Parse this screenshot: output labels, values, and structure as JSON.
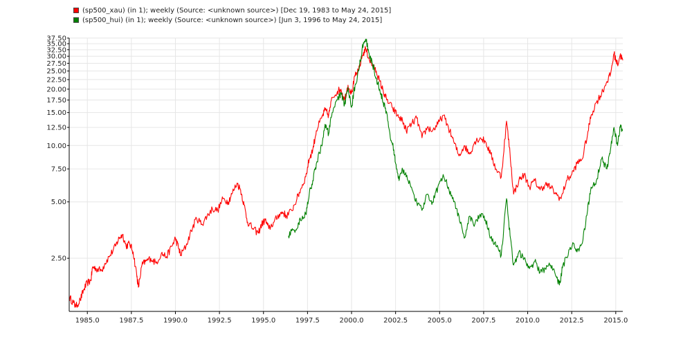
{
  "legend": [
    {
      "label": "(sp500_xau) (in 1); weekly (Source: <unknown source>) [Dec 19, 1983 to May 24, 2015]",
      "color": "#ff0000"
    },
    {
      "label": "(sp500_hui) (in 1); weekly (Source: <unknown source>) [Jun 3, 1996 to May 24, 2015]",
      "color": "#008000"
    }
  ],
  "chart_data": {
    "type": "line",
    "y_scale": "log",
    "xlim": [
      1983.97,
      2015.4
    ],
    "ylim": [
      1.3,
      37.5
    ],
    "grid": true,
    "x_ticks": [
      {
        "value": 1985.0,
        "label": "1985.0"
      },
      {
        "value": 1987.5,
        "label": "1987.5"
      },
      {
        "value": 1990.0,
        "label": "1990.0"
      },
      {
        "value": 1992.5,
        "label": "1992.5"
      },
      {
        "value": 1995.0,
        "label": "1995.0"
      },
      {
        "value": 1997.5,
        "label": "1997.5"
      },
      {
        "value": 2000.0,
        "label": "2000.0"
      },
      {
        "value": 2002.5,
        "label": "2002.5"
      },
      {
        "value": 2005.0,
        "label": "2005.0"
      },
      {
        "value": 2007.5,
        "label": "2007.5"
      },
      {
        "value": 2010.0,
        "label": "2010.0"
      },
      {
        "value": 2012.5,
        "label": "2012.5"
      },
      {
        "value": 2015.0,
        "label": "2015.0"
      }
    ],
    "y_ticks": [
      {
        "value": 2.5,
        "label": "2.50"
      },
      {
        "value": 5.0,
        "label": "5.00"
      },
      {
        "value": 7.5,
        "label": "7.50"
      },
      {
        "value": 10.0,
        "label": "10.00"
      },
      {
        "value": 12.5,
        "label": "12.50"
      },
      {
        "value": 15.0,
        "label": "15.00"
      },
      {
        "value": 17.5,
        "label": "17.50"
      },
      {
        "value": 20.0,
        "label": "20.00"
      },
      {
        "value": 22.5,
        "label": "22.50"
      },
      {
        "value": 25.0,
        "label": "25.00"
      },
      {
        "value": 27.5,
        "label": "27.50"
      },
      {
        "value": 30.0,
        "label": "30.00"
      },
      {
        "value": 32.5,
        "label": "32.50"
      },
      {
        "value": 35.0,
        "label": "35.00"
      },
      {
        "value": 37.5,
        "label": "37.50"
      }
    ],
    "series": [
      {
        "color": "#ff0000",
        "points": [
          [
            1983.97,
            1.55
          ],
          [
            1984.2,
            1.45
          ],
          [
            1984.35,
            1.38
          ],
          [
            1984.6,
            1.5
          ],
          [
            1984.8,
            1.7
          ],
          [
            1985.0,
            1.85
          ],
          [
            1985.2,
            1.9
          ],
          [
            1985.3,
            2.25
          ],
          [
            1985.5,
            2.2
          ],
          [
            1985.8,
            2.15
          ],
          [
            1986.0,
            2.35
          ],
          [
            1986.3,
            2.6
          ],
          [
            1986.6,
            2.9
          ],
          [
            1986.8,
            3.2
          ],
          [
            1987.0,
            3.35
          ],
          [
            1987.2,
            2.9
          ],
          [
            1987.4,
            3.0
          ],
          [
            1987.6,
            2.7
          ],
          [
            1987.8,
            2.05
          ],
          [
            1987.9,
            1.75
          ],
          [
            1988.1,
            2.3
          ],
          [
            1988.3,
            2.4
          ],
          [
            1988.6,
            2.5
          ],
          [
            1988.9,
            2.35
          ],
          [
            1989.2,
            2.65
          ],
          [
            1989.5,
            2.55
          ],
          [
            1989.8,
            2.9
          ],
          [
            1990.0,
            3.2
          ],
          [
            1990.2,
            2.8
          ],
          [
            1990.3,
            2.6
          ],
          [
            1990.6,
            2.9
          ],
          [
            1990.9,
            3.5
          ],
          [
            1991.2,
            4.1
          ],
          [
            1991.5,
            3.8
          ],
          [
            1991.8,
            4.2
          ],
          [
            1992.1,
            4.6
          ],
          [
            1992.4,
            4.5
          ],
          [
            1992.7,
            5.2
          ],
          [
            1993.0,
            5.0
          ],
          [
            1993.2,
            5.5
          ],
          [
            1993.5,
            6.3
          ],
          [
            1993.7,
            5.8
          ],
          [
            1993.9,
            4.8
          ],
          [
            1994.1,
            3.9
          ],
          [
            1994.4,
            3.6
          ],
          [
            1994.7,
            3.4
          ],
          [
            1994.9,
            3.8
          ],
          [
            1995.1,
            4.0
          ],
          [
            1995.3,
            3.6
          ],
          [
            1995.6,
            3.9
          ],
          [
            1995.9,
            4.3
          ],
          [
            1996.1,
            4.4
          ],
          [
            1996.3,
            4.2
          ],
          [
            1996.6,
            4.5
          ],
          [
            1996.9,
            5.2
          ],
          [
            1997.1,
            5.8
          ],
          [
            1997.4,
            6.8
          ],
          [
            1997.6,
            8.5
          ],
          [
            1997.8,
            9.5
          ],
          [
            1998.0,
            12.0
          ],
          [
            1998.3,
            14.0
          ],
          [
            1998.5,
            15.5
          ],
          [
            1998.7,
            14.5
          ],
          [
            1998.9,
            18.0
          ],
          [
            1999.2,
            19.5
          ],
          [
            1999.4,
            20.0
          ],
          [
            1999.6,
            17.5
          ],
          [
            1999.8,
            21.0
          ],
          [
            2000.0,
            19.0
          ],
          [
            2000.2,
            23.5
          ],
          [
            2000.4,
            25.0
          ],
          [
            2000.6,
            30.0
          ],
          [
            2000.8,
            33.0
          ],
          [
            2001.0,
            29.0
          ],
          [
            2001.2,
            26.5
          ],
          [
            2001.4,
            25.0
          ],
          [
            2001.6,
            22.0
          ],
          [
            2001.8,
            19.5
          ],
          [
            2002.0,
            17.5
          ],
          [
            2002.3,
            16.0
          ],
          [
            2002.6,
            14.5
          ],
          [
            2002.9,
            13.5
          ],
          [
            2003.1,
            12.0
          ],
          [
            2003.4,
            13.0
          ],
          [
            2003.7,
            14.0
          ],
          [
            2004.0,
            11.0
          ],
          [
            2004.3,
            12.5
          ],
          [
            2004.6,
            12.0
          ],
          [
            2004.9,
            13.0
          ],
          [
            2005.2,
            14.5
          ],
          [
            2005.5,
            12.5
          ],
          [
            2005.8,
            10.5
          ],
          [
            2006.1,
            8.8
          ],
          [
            2006.4,
            10.0
          ],
          [
            2006.7,
            9.0
          ],
          [
            2007.0,
            10.5
          ],
          [
            2007.3,
            11.0
          ],
          [
            2007.6,
            10.5
          ],
          [
            2007.9,
            9.0
          ],
          [
            2008.2,
            7.5
          ],
          [
            2008.5,
            6.8
          ],
          [
            2008.8,
            13.5
          ],
          [
            2009.0,
            9.0
          ],
          [
            2009.2,
            5.5
          ],
          [
            2009.5,
            6.5
          ],
          [
            2009.8,
            7.0
          ],
          [
            2010.1,
            6.0
          ],
          [
            2010.4,
            6.5
          ],
          [
            2010.7,
            5.8
          ],
          [
            2011.0,
            6.2
          ],
          [
            2011.3,
            6.0
          ],
          [
            2011.6,
            5.5
          ],
          [
            2011.9,
            5.2
          ],
          [
            2012.2,
            6.5
          ],
          [
            2012.5,
            7.0
          ],
          [
            2012.8,
            8.0
          ],
          [
            2013.1,
            8.5
          ],
          [
            2013.4,
            11.5
          ],
          [
            2013.6,
            14.5
          ],
          [
            2013.9,
            17.0
          ],
          [
            2014.2,
            19.0
          ],
          [
            2014.5,
            22.0
          ],
          [
            2014.7,
            24.0
          ],
          [
            2014.9,
            31.0
          ],
          [
            2015.1,
            27.0
          ],
          [
            2015.25,
            30.5
          ],
          [
            2015.4,
            28.5
          ]
        ]
      },
      {
        "color": "#008000",
        "points": [
          [
            1996.42,
            3.3
          ],
          [
            1996.6,
            3.5
          ],
          [
            1996.9,
            3.6
          ],
          [
            1997.1,
            4.0
          ],
          [
            1997.4,
            4.3
          ],
          [
            1997.6,
            5.5
          ],
          [
            1997.8,
            6.5
          ],
          [
            1998.0,
            8.0
          ],
          [
            1998.3,
            10.0
          ],
          [
            1998.5,
            13.0
          ],
          [
            1998.7,
            11.5
          ],
          [
            1998.9,
            15.0
          ],
          [
            1999.2,
            17.5
          ],
          [
            1999.4,
            19.0
          ],
          [
            1999.6,
            16.5
          ],
          [
            1999.8,
            20.5
          ],
          [
            2000.0,
            16.0
          ],
          [
            2000.2,
            21.0
          ],
          [
            2000.4,
            25.0
          ],
          [
            2000.6,
            33.0
          ],
          [
            2000.8,
            37.0
          ],
          [
            2001.0,
            31.0
          ],
          [
            2001.2,
            27.0
          ],
          [
            2001.4,
            23.0
          ],
          [
            2001.6,
            20.0
          ],
          [
            2001.8,
            17.0
          ],
          [
            2002.0,
            15.0
          ],
          [
            2002.2,
            11.0
          ],
          [
            2002.4,
            9.5
          ],
          [
            2002.5,
            8.0
          ],
          [
            2002.7,
            6.5
          ],
          [
            2002.9,
            7.5
          ],
          [
            2003.1,
            6.8
          ],
          [
            2003.4,
            6.0
          ],
          [
            2003.7,
            5.0
          ],
          [
            2004.0,
            4.5
          ],
          [
            2004.3,
            5.5
          ],
          [
            2004.6,
            5.0
          ],
          [
            2004.9,
            6.0
          ],
          [
            2005.2,
            7.0
          ],
          [
            2005.5,
            6.0
          ],
          [
            2005.8,
            5.0
          ],
          [
            2006.1,
            4.2
          ],
          [
            2006.4,
            3.2
          ],
          [
            2006.7,
            4.2
          ],
          [
            2007.0,
            3.8
          ],
          [
            2007.3,
            4.3
          ],
          [
            2007.6,
            4.0
          ],
          [
            2007.9,
            3.2
          ],
          [
            2008.2,
            2.9
          ],
          [
            2008.5,
            2.6
          ],
          [
            2008.8,
            5.2
          ],
          [
            2009.0,
            3.3
          ],
          [
            2009.2,
            2.3
          ],
          [
            2009.5,
            2.7
          ],
          [
            2009.8,
            2.5
          ],
          [
            2010.1,
            2.2
          ],
          [
            2010.4,
            2.4
          ],
          [
            2010.7,
            2.1
          ],
          [
            2011.0,
            2.2
          ],
          [
            2011.3,
            2.3
          ],
          [
            2011.6,
            2.0
          ],
          [
            2011.8,
            1.8
          ],
          [
            2012.0,
            2.3
          ],
          [
            2012.3,
            2.6
          ],
          [
            2012.6,
            3.0
          ],
          [
            2012.8,
            2.7
          ],
          [
            2013.1,
            3.0
          ],
          [
            2013.4,
            4.5
          ],
          [
            2013.6,
            6.0
          ],
          [
            2013.9,
            6.5
          ],
          [
            2014.2,
            8.5
          ],
          [
            2014.5,
            7.5
          ],
          [
            2014.7,
            9.5
          ],
          [
            2014.9,
            12.5
          ],
          [
            2015.1,
            10.0
          ],
          [
            2015.25,
            12.5
          ],
          [
            2015.4,
            12.0
          ]
        ]
      }
    ]
  }
}
